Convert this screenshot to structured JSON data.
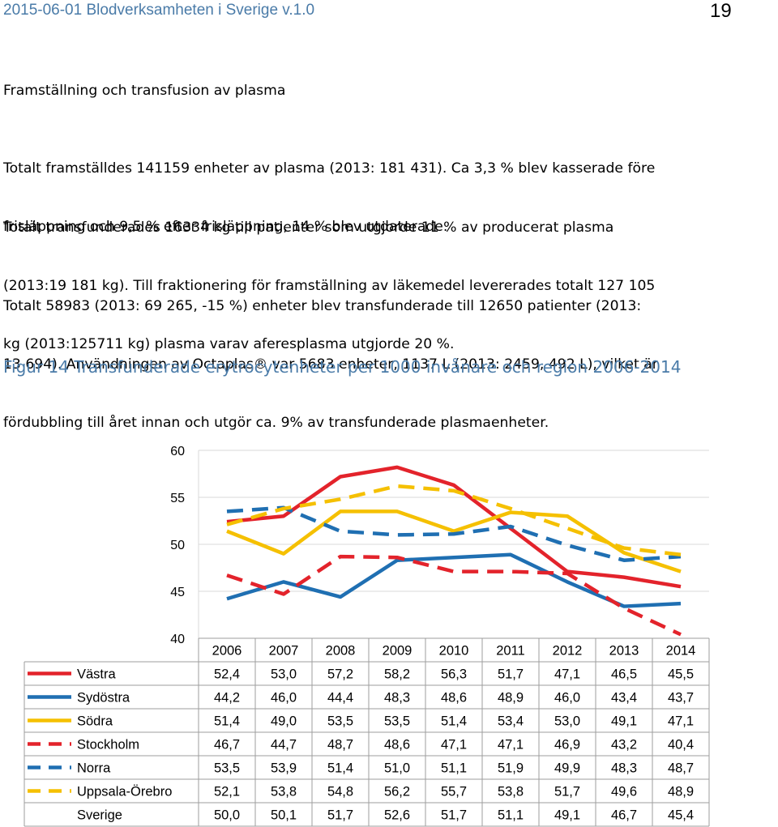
{
  "header": {
    "left": "2015-06-01 Blodverksamheten i Sverige v.1.0",
    "page_number": "19"
  },
  "section_title": "Framställning och transfusion av plasma",
  "paragraphs": [
    [
      "Totalt framställdes 141159 enheter av plasma (2013: 181 431). Ca 3,3 % blev kasserade före",
      "frisläppning och 9,5 % efter frisläppning, 14 % blev utdaterade."
    ],
    [
      "Totalt transfunderades 16334 kg till patienter som utgjorde 11 % av producerat plasma",
      "(2013:19 181 kg). Till fraktionering för framställning av läkemedel levererades totalt 127 105",
      "kg (2013:125711 kg) plasma varav aferesplasma utgjorde 20 %."
    ],
    [
      "Totalt 58983 (2013: 69 265, -15 %) enheter blev transfunderade till 12650 patienter (2013:",
      "13 694). Användningen av Octaplas® var 5683 enheter, 1137 L (2013: 2459, 492 L), vilket är",
      "fördubbling till året innan och utgör ca. 9% av transfunderade plasmaenheter."
    ]
  ],
  "figure_caption": "Figur 14 Transfunderade erytrocytenheter per 1000 invånare och region 2006-2014",
  "chart_data": {
    "type": "line",
    "y_ticks": [
      "60",
      "55",
      "50",
      "45",
      "40"
    ],
    "ylim": [
      40,
      60
    ],
    "grid": "horizontal",
    "legend": "table-below",
    "x": [
      "2006",
      "2007",
      "2008",
      "2009",
      "2010",
      "2011",
      "2012",
      "2013",
      "2014"
    ],
    "series": [
      {
        "name": "Västra",
        "color": "#e3232b",
        "dash": false,
        "plotted": true,
        "values": [
          52.4,
          53.0,
          57.2,
          58.2,
          56.3,
          51.7,
          47.1,
          46.5,
          45.5
        ],
        "labels": [
          "52,4",
          "53,0",
          "57,2",
          "58,2",
          "56,3",
          "51,7",
          "47,1",
          "46,5",
          "45,5"
        ]
      },
      {
        "name": "Sydöstra",
        "color": "#1f6fb2",
        "dash": false,
        "plotted": true,
        "values": [
          44.2,
          46.0,
          44.4,
          48.3,
          48.6,
          48.9,
          46.0,
          43.4,
          43.7
        ],
        "labels": [
          "44,2",
          "46,0",
          "44,4",
          "48,3",
          "48,6",
          "48,9",
          "46,0",
          "43,4",
          "43,7"
        ]
      },
      {
        "name": "Södra",
        "color": "#f5c000",
        "dash": false,
        "plotted": true,
        "values": [
          51.4,
          49.0,
          53.5,
          53.5,
          51.4,
          53.4,
          53.0,
          49.1,
          47.1
        ],
        "labels": [
          "51,4",
          "49,0",
          "53,5",
          "53,5",
          "51,4",
          "53,4",
          "53,0",
          "49,1",
          "47,1"
        ]
      },
      {
        "name": "Stockholm",
        "color": "#e3232b",
        "dash": true,
        "plotted": true,
        "values": [
          46.7,
          44.7,
          48.7,
          48.6,
          47.1,
          47.1,
          46.9,
          43.2,
          40.4
        ],
        "labels": [
          "46,7",
          "44,7",
          "48,7",
          "48,6",
          "47,1",
          "47,1",
          "46,9",
          "43,2",
          "40,4"
        ]
      },
      {
        "name": "Norra",
        "color": "#1f6fb2",
        "dash": true,
        "plotted": true,
        "values": [
          53.5,
          53.9,
          51.4,
          51.0,
          51.1,
          51.9,
          49.9,
          48.3,
          48.7
        ],
        "labels": [
          "53,5",
          "53,9",
          "51,4",
          "51,0",
          "51,1",
          "51,9",
          "49,9",
          "48,3",
          "48,7"
        ]
      },
      {
        "name": "Uppsala-Örebro",
        "color": "#f5c000",
        "dash": true,
        "plotted": true,
        "values": [
          52.1,
          53.8,
          54.8,
          56.2,
          55.7,
          53.8,
          51.7,
          49.6,
          48.9
        ],
        "labels": [
          "52,1",
          "53,8",
          "54,8",
          "56,2",
          "55,7",
          "53,8",
          "51,7",
          "49,6",
          "48,9"
        ]
      },
      {
        "name": "Sverige",
        "color": "",
        "dash": false,
        "plotted": false,
        "values": [
          50.0,
          50.1,
          51.7,
          52.6,
          51.7,
          51.1,
          49.1,
          46.7,
          45.4
        ],
        "labels": [
          "50,0",
          "50,1",
          "51,7",
          "52,6",
          "51,7",
          "51,1",
          "49,1",
          "46,7",
          "45,4"
        ]
      }
    ]
  }
}
